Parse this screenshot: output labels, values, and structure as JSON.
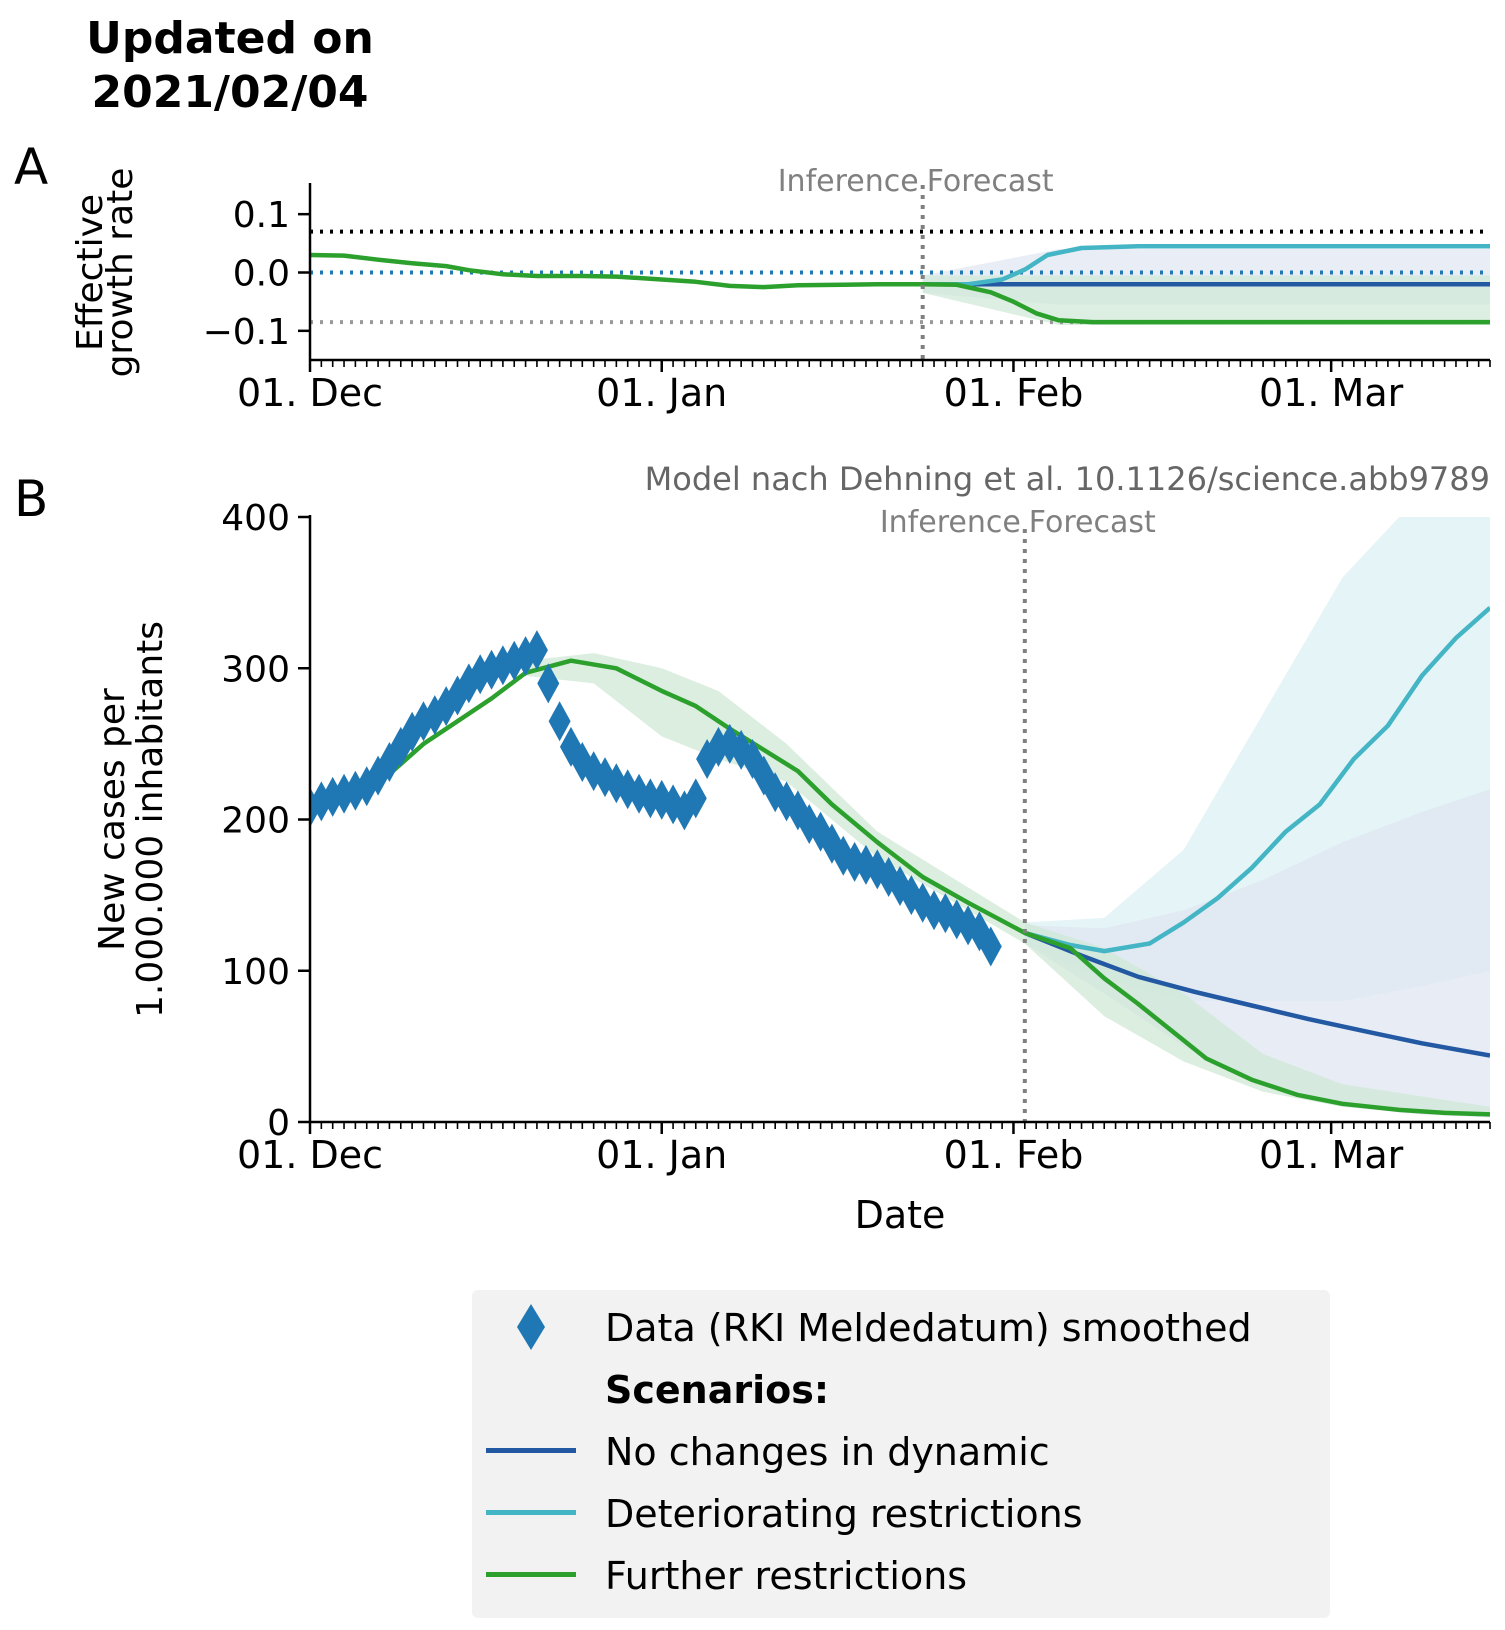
{
  "header": {
    "title_line1": "Updated on",
    "title_line2": "2021/02/04"
  },
  "panels": {
    "a_label": "A",
    "b_label": "B"
  },
  "colors": {
    "data": "#1f77b4",
    "no_change": "#2359a3",
    "deteriorating": "#44b5c4",
    "further": "#2ca02c",
    "band_no_change": "#dfe6f2",
    "band_deteriorating": "#dcf0f3",
    "band_further": "#cfe8d6",
    "divider": "#808080"
  },
  "legend": {
    "data_label": "Data (RKI Meldedatum) smoothed",
    "scenarios_heading": "Scenarios:",
    "no_change": "No changes in dynamic",
    "deteriorating": "Deteriorating restrictions",
    "further": "Further restrictions"
  },
  "chart_data": [
    {
      "id": "A",
      "type": "line",
      "ylabel_line1": "Effective",
      "ylabel_line2": "growth rate",
      "xlabel": "",
      "ylim": [
        -0.15,
        0.15
      ],
      "yticks": [
        {
          "value": 0.1,
          "label": "0.1"
        },
        {
          "value": 0.0,
          "label": "0.0"
        },
        {
          "value": -0.1,
          "label": "−0.1"
        }
      ],
      "xlim": [
        "2020-12-01",
        "2021-03-15"
      ],
      "xticks": [
        {
          "date": "2020-12-01",
          "label": "01. Dec"
        },
        {
          "date": "2021-01-01",
          "label": "01. Jan"
        },
        {
          "date": "2021-02-01",
          "label": "01. Feb"
        },
        {
          "date": "2021-03-01",
          "label": "01. Mar"
        }
      ],
      "divider_date": "2021-01-24",
      "divider_label_left": "Inference",
      "divider_label_right": "Forecast",
      "reference_lines": [
        {
          "value": 0.07,
          "color": "#000000"
        },
        {
          "value": 0.0,
          "color": "#1f77b4"
        },
        {
          "value": -0.085,
          "color": "#999999"
        }
      ],
      "series": [
        {
          "name": "No changes in dynamic",
          "color_key": "no_change",
          "points": [
            [
              "2021-01-24",
              -0.02
            ],
            [
              "2021-03-15",
              -0.02
            ]
          ]
        },
        {
          "name": "Deteriorating restrictions",
          "color_key": "deteriorating",
          "points": [
            [
              "2021-01-24",
              -0.02
            ],
            [
              "2021-01-28",
              -0.02
            ],
            [
              "2021-01-31",
              -0.012
            ],
            [
              "2021-02-02",
              0.005
            ],
            [
              "2021-02-04",
              0.03
            ],
            [
              "2021-02-07",
              0.042
            ],
            [
              "2021-02-12",
              0.045
            ],
            [
              "2021-03-15",
              0.045
            ]
          ]
        },
        {
          "name": "Further restrictions",
          "color_key": "further",
          "points": [
            [
              "2020-12-01",
              0.03
            ],
            [
              "2020-12-04",
              0.029
            ],
            [
              "2020-12-07",
              0.022
            ],
            [
              "2020-12-10",
              0.016
            ],
            [
              "2020-12-13",
              0.011
            ],
            [
              "2020-12-15",
              0.004
            ],
            [
              "2020-12-18",
              -0.003
            ],
            [
              "2020-12-21",
              -0.006
            ],
            [
              "2020-12-25",
              -0.006
            ],
            [
              "2020-12-28",
              -0.007
            ],
            [
              "2021-01-01",
              -0.012
            ],
            [
              "2021-01-04",
              -0.016
            ],
            [
              "2021-01-07",
              -0.023
            ],
            [
              "2021-01-10",
              -0.025
            ],
            [
              "2021-01-13",
              -0.022
            ],
            [
              "2021-01-17",
              -0.021
            ],
            [
              "2021-01-20",
              -0.02
            ],
            [
              "2021-01-24",
              -0.02
            ],
            [
              "2021-01-27",
              -0.021
            ],
            [
              "2021-01-30",
              -0.034
            ],
            [
              "2021-02-01",
              -0.05
            ],
            [
              "2021-02-03",
              -0.07
            ],
            [
              "2021-02-05",
              -0.082
            ],
            [
              "2021-02-08",
              -0.085
            ],
            [
              "2021-03-15",
              -0.085
            ]
          ]
        }
      ]
    },
    {
      "id": "B",
      "type": "line",
      "annotation": "Model nach Dehning et al. 10.1126/science.abb9789",
      "ylabel_line1": "New cases per",
      "ylabel_line2": "1.000.000 inhabitants",
      "xlabel": "Date",
      "ylim": [
        0,
        400
      ],
      "yticks": [
        {
          "value": 0,
          "label": "0"
        },
        {
          "value": 100,
          "label": "100"
        },
        {
          "value": 200,
          "label": "200"
        },
        {
          "value": 300,
          "label": "300"
        },
        {
          "value": 400,
          "label": "400"
        }
      ],
      "xlim": [
        "2020-12-01",
        "2021-03-15"
      ],
      "xticks": [
        {
          "date": "2020-12-01",
          "label": "01. Dec"
        },
        {
          "date": "2021-01-01",
          "label": "01. Jan"
        },
        {
          "date": "2021-02-01",
          "label": "01. Feb"
        },
        {
          "date": "2021-03-01",
          "label": "01. Mar"
        }
      ],
      "divider_date": "2021-02-02",
      "divider_label_left": "Inference",
      "divider_label_right": "Forecast",
      "data_points": {
        "name": "Data (RKI Meldedatum) smoothed",
        "start_date": "2020-12-01",
        "values": [
          208,
          212,
          215,
          217,
          219,
          222,
          229,
          238,
          248,
          258,
          265,
          269,
          275,
          282,
          290,
          296,
          299,
          302,
          305,
          308,
          312,
          290,
          265,
          248,
          238,
          232,
          228,
          224,
          220,
          217,
          214,
          213,
          210,
          206,
          214,
          240,
          248,
          250,
          246,
          240,
          229,
          218,
          212,
          206,
          197,
          192,
          184,
          176,
          172,
          170,
          167,
          162,
          156,
          150,
          145,
          140,
          138,
          134,
          130,
          126,
          116
        ]
      },
      "series": [
        {
          "name": "No changes in dynamic",
          "color_key": "no_change",
          "points": [
            [
              "2021-02-02",
              125
            ],
            [
              "2021-02-07",
              110
            ],
            [
              "2021-02-12",
              96
            ],
            [
              "2021-02-17",
              86
            ],
            [
              "2021-02-22",
              77
            ],
            [
              "2021-02-27",
              68
            ],
            [
              "2021-03-04",
              60
            ],
            [
              "2021-03-09",
              52
            ],
            [
              "2021-03-15",
              44
            ]
          ]
        },
        {
          "name": "Deteriorating restrictions",
          "color_key": "deteriorating",
          "points": [
            [
              "2021-02-02",
              125
            ],
            [
              "2021-02-06",
              117
            ],
            [
              "2021-02-09",
              113
            ],
            [
              "2021-02-13",
              118
            ],
            [
              "2021-02-16",
              132
            ],
            [
              "2021-02-19",
              148
            ],
            [
              "2021-02-22",
              168
            ],
            [
              "2021-02-25",
              192
            ],
            [
              "2021-02-28",
              210
            ],
            [
              "2021-03-03",
              240
            ],
            [
              "2021-03-06",
              262
            ],
            [
              "2021-03-09",
              295
            ],
            [
              "2021-03-12",
              320
            ],
            [
              "2021-03-15",
              340
            ]
          ]
        },
        {
          "name": "Further restrictions",
          "color_key": "further",
          "points": [
            [
              "2020-12-01",
              212
            ],
            [
              "2020-12-05",
              220
            ],
            [
              "2020-12-08",
              230
            ],
            [
              "2020-12-11",
              250
            ],
            [
              "2020-12-14",
              265
            ],
            [
              "2020-12-17",
              280
            ],
            [
              "2020-12-20",
              297
            ],
            [
              "2020-12-24",
              305
            ],
            [
              "2020-12-28",
              300
            ],
            [
              "2021-01-01",
              285
            ],
            [
              "2021-01-04",
              275
            ],
            [
              "2021-01-07",
              260
            ],
            [
              "2021-01-10",
              246
            ],
            [
              "2021-01-13",
              232
            ],
            [
              "2021-01-16",
              210
            ],
            [
              "2021-01-20",
              185
            ],
            [
              "2021-01-24",
              162
            ],
            [
              "2021-01-28",
              145
            ],
            [
              "2021-02-02",
              125
            ],
            [
              "2021-02-06",
              115
            ],
            [
              "2021-02-09",
              95
            ],
            [
              "2021-02-12",
              78
            ],
            [
              "2021-02-15",
              60
            ],
            [
              "2021-02-18",
              42
            ],
            [
              "2021-02-22",
              28
            ],
            [
              "2021-02-26",
              18
            ],
            [
              "2021-03-02",
              12
            ],
            [
              "2021-03-07",
              8
            ],
            [
              "2021-03-11",
              6
            ],
            [
              "2021-03-15",
              5
            ]
          ]
        }
      ],
      "bands": [
        {
          "color_key": "band_deteriorating",
          "upper": [
            [
              "2021-02-02",
              132
            ],
            [
              "2021-02-09",
              135
            ],
            [
              "2021-02-16",
              180
            ],
            [
              "2021-02-23",
              270
            ],
            [
              "2021-03-02",
              360
            ],
            [
              "2021-03-07",
              400
            ],
            [
              "2021-03-15",
              400
            ]
          ],
          "lower": [
            [
              "2021-02-02",
              118
            ],
            [
              "2021-02-09",
              95
            ],
            [
              "2021-02-16",
              80
            ],
            [
              "2021-02-23",
              80
            ],
            [
              "2021-03-02",
              80
            ],
            [
              "2021-03-09",
              90
            ],
            [
              "2021-03-15",
              100
            ]
          ]
        },
        {
          "color_key": "band_no_change",
          "upper": [
            [
              "2021-02-02",
              130
            ],
            [
              "2021-02-09",
              128
            ],
            [
              "2021-02-16",
              140
            ],
            [
              "2021-02-23",
              160
            ],
            [
              "2021-03-02",
              185
            ],
            [
              "2021-03-09",
              205
            ],
            [
              "2021-03-15",
              220
            ]
          ],
          "lower": [
            [
              "2021-02-02",
              118
            ],
            [
              "2021-02-09",
              85
            ],
            [
              "2021-02-16",
              50
            ],
            [
              "2021-02-23",
              25
            ],
            [
              "2021-03-02",
              10
            ],
            [
              "2021-03-09",
              5
            ],
            [
              "2021-03-15",
              3
            ]
          ]
        },
        {
          "color_key": "band_further",
          "upper": [
            [
              "2020-12-20",
              305
            ],
            [
              "2020-12-26",
              310
            ],
            [
              "2021-01-01",
              300
            ],
            [
              "2021-01-06",
              285
            ],
            [
              "2021-01-12",
              250
            ],
            [
              "2021-01-20",
              192
            ],
            [
              "2021-02-02",
              132
            ],
            [
              "2021-02-09",
              115
            ],
            [
              "2021-02-16",
              85
            ],
            [
              "2021-02-23",
              45
            ],
            [
              "2021-03-02",
              25
            ],
            [
              "2021-03-15",
              10
            ]
          ],
          "lower": [
            [
              "2020-12-20",
              295
            ],
            [
              "2020-12-26",
              290
            ],
            [
              "2021-01-01",
              255
            ],
            [
              "2021-01-06",
              240
            ],
            [
              "2021-01-12",
              225
            ],
            [
              "2021-01-20",
              175
            ],
            [
              "2021-02-02",
              118
            ],
            [
              "2021-02-09",
              70
            ],
            [
              "2021-02-16",
              40
            ],
            [
              "2021-02-23",
              20
            ],
            [
              "2021-03-02",
              10
            ],
            [
              "2021-03-15",
              4
            ]
          ]
        }
      ]
    }
  ]
}
